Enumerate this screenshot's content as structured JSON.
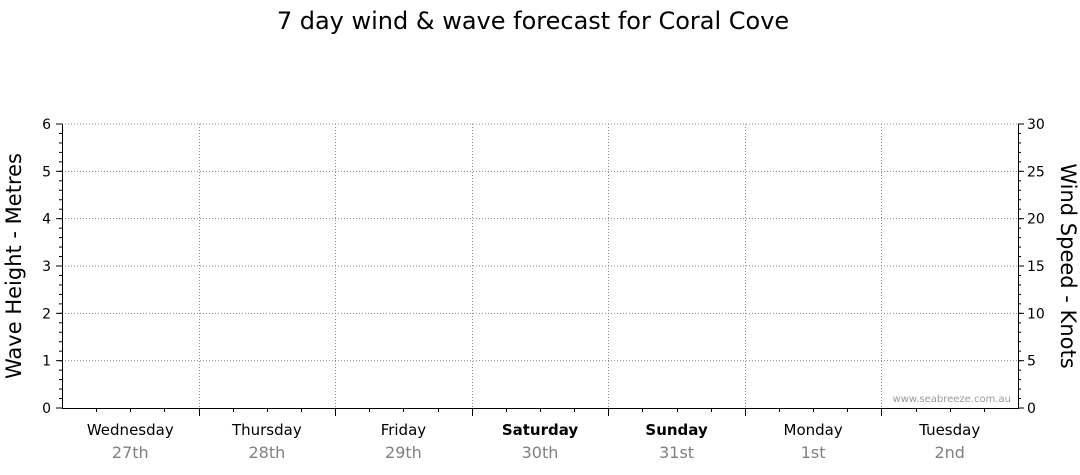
{
  "chart_data": {
    "type": "line",
    "title": "7 day wind & wave forecast for Coral Cove",
    "ylabel_left": "Wave Height - Metres",
    "ylabel_right": "Wind Speed - Knots",
    "ylim_left": [
      0,
      6
    ],
    "ylim_right": [
      0,
      30
    ],
    "yticks_left": [
      "0",
      "1",
      "2",
      "3",
      "4",
      "5",
      "6"
    ],
    "yticks_right": [
      "0",
      "5",
      "10",
      "15",
      "20",
      "25",
      "30"
    ],
    "grid": true,
    "categories": [
      {
        "day": "Wednesday",
        "date": "27th",
        "weekend": false
      },
      {
        "day": "Thursday",
        "date": "28th",
        "weekend": false
      },
      {
        "day": "Friday",
        "date": "29th",
        "weekend": false
      },
      {
        "day": "Saturday",
        "date": "30th",
        "weekend": true
      },
      {
        "day": "Sunday",
        "date": "31st",
        "weekend": true
      },
      {
        "day": "Monday",
        "date": "1st",
        "weekend": false
      },
      {
        "day": "Tuesday",
        "date": "2nd",
        "weekend": false
      }
    ],
    "series": [],
    "watermark": "www.seabreeze.com.au",
    "colors": {
      "axis": "#000000",
      "grid": "#8c8c8c",
      "date_text": "#808080",
      "watermark": "#9a9a9a"
    }
  }
}
